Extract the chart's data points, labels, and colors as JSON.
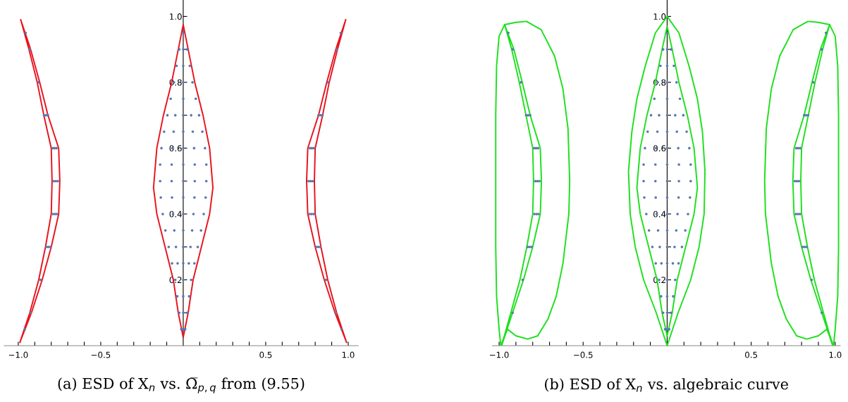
{
  "chart_data": [
    {
      "type": "scatter",
      "title": "(a) ESD of X$_{n}$ vs. Ω̅$_{p,q}$ from (9.55)",
      "marker": "none",
      "line_style": "solid",
      "xlim": [
        -1.085,
        1.06
      ],
      "ylim": [
        0,
        1.05
      ],
      "xticks": [
        {
          "value": -1.0,
          "label": "−1.0"
        },
        {
          "value": -0.9,
          "label": null
        },
        {
          "value": -0.8,
          "label": null
        },
        {
          "value": -0.7,
          "label": null
        },
        {
          "value": -0.6,
          "label": null
        },
        {
          "value": -0.5,
          "label": "−0.5"
        },
        {
          "value": -0.4,
          "label": null
        },
        {
          "value": -0.3,
          "label": null
        },
        {
          "value": -0.2,
          "label": null
        },
        {
          "value": -0.1,
          "label": null
        },
        {
          "value": 0.1,
          "label": null
        },
        {
          "value": 0.2,
          "label": null
        },
        {
          "value": 0.3,
          "label": null
        },
        {
          "value": 0.4,
          "label": null
        },
        {
          "value": 0.5,
          "label": "0.5"
        },
        {
          "value": 0.6,
          "label": null
        },
        {
          "value": 0.7,
          "label": null
        },
        {
          "value": 0.8,
          "label": null
        },
        {
          "value": 0.9,
          "label": null
        },
        {
          "value": 1.0,
          "label": "1.0"
        }
      ],
      "yticks": [
        {
          "value": 0.1,
          "label": null
        },
        {
          "value": 0.2,
          "label": "0.2"
        },
        {
          "value": 0.3,
          "label": null
        },
        {
          "value": 0.4,
          "label": "0.4"
        },
        {
          "value": 0.5,
          "label": null
        },
        {
          "value": 0.6,
          "label": "0.6"
        },
        {
          "value": 0.7,
          "label": null
        },
        {
          "value": 0.8,
          "label": "0.8"
        },
        {
          "value": 0.9,
          "label": null
        },
        {
          "value": 1.0,
          "label": "1.0"
        }
      ],
      "series": [
        {
          "type": "scatter",
          "marker": "circle",
          "color": "#5a78b0",
          "x": [
            -0.012,
            0,
            0.012,
            -0.024,
            0,
            0.024,
            -0.036,
            0,
            0.036,
            -0.048,
            0,
            0.048,
            -0.068,
            -0.034,
            0,
            0.034,
            0.068,
            -0.088,
            -0.044,
            0,
            0.044,
            0.088,
            -0.108,
            -0.054,
            0,
            0.054,
            0.108,
            -0.124,
            -0.062,
            0,
            0.062,
            0.124,
            -0.136,
            -0.068,
            0,
            0.068,
            0.136,
            -0.14,
            -0.07,
            0,
            0.07,
            0.14,
            -0.14,
            -0.07,
            0,
            0.07,
            0.14,
            -0.132,
            -0.066,
            0,
            0.066,
            0.132,
            -0.116,
            -0.058,
            0,
            0.058,
            0.116,
            -0.096,
            -0.048,
            0,
            0.048,
            0.096,
            -0.076,
            0,
            0.076,
            -0.056,
            0,
            0.056,
            -0.04,
            0,
            0.04,
            -0.024,
            0,
            0.024,
            0
          ],
          "values": [
            0.05,
            0.05,
            0.05,
            0.1,
            0.1,
            0.1,
            0.15,
            0.15,
            0.15,
            0.2,
            0.2,
            0.2,
            0.25,
            0.25,
            0.25,
            0.25,
            0.25,
            0.3,
            0.3,
            0.3,
            0.3,
            0.3,
            0.35,
            0.35,
            0.35,
            0.35,
            0.35,
            0.4,
            0.4,
            0.4,
            0.4,
            0.4,
            0.45,
            0.45,
            0.45,
            0.45,
            0.45,
            0.5,
            0.5,
            0.5,
            0.5,
            0.5,
            0.55,
            0.55,
            0.55,
            0.55,
            0.55,
            0.6,
            0.6,
            0.6,
            0.6,
            0.6,
            0.65,
            0.65,
            0.65,
            0.65,
            0.65,
            0.7,
            0.7,
            0.7,
            0.7,
            0.7,
            0.75,
            0.75,
            0.75,
            0.8,
            0.8,
            0.8,
            0.85,
            0.85,
            0.85,
            0.9,
            0.9,
            0.9,
            0.95
          ]
        },
        {
          "marker": "circle",
          "color": "#5a78b0",
          "x": [
            0.96,
            0.925,
            0.865,
            0.806,
            0.818,
            0.83,
            0.766,
            0.778,
            0.79,
            0.76,
            0.772,
            0.784,
            0.768,
            0.78,
            0.792,
            0.82,
            0.832,
            0.844,
            0.878,
            0.93,
            0.955
          ],
          "values": [
            0.05,
            0.1,
            0.2,
            0.3,
            0.3,
            0.3,
            0.4,
            0.4,
            0.4,
            0.5,
            0.5,
            0.5,
            0.6,
            0.6,
            0.6,
            0.7,
            0.7,
            0.7,
            0.8,
            0.9,
            0.95
          ]
        },
        {
          "marker": "circle",
          "color": "#5a78b0",
          "x": [
            -0.96,
            -0.925,
            -0.865,
            -0.806,
            -0.818,
            -0.83,
            -0.766,
            -0.778,
            -0.79,
            -0.76,
            -0.772,
            -0.784,
            -0.768,
            -0.78,
            -0.792,
            -0.82,
            -0.832,
            -0.844,
            -0.878,
            -0.93,
            -0.955
          ],
          "values": [
            0.05,
            0.1,
            0.2,
            0.3,
            0.3,
            0.3,
            0.4,
            0.4,
            0.4,
            0.5,
            0.5,
            0.5,
            0.6,
            0.6,
            0.6,
            0.7,
            0.7,
            0.7,
            0.8,
            0.9,
            0.95
          ]
        },
        {
          "type": "line",
          "color": "#e8141e",
          "x": [
            -0.18,
            -0.16,
            -0.12,
            -0.07,
            -0.03,
            0,
            0.03,
            0.07,
            0.12,
            0.16,
            0.18,
            null,
            -0.18,
            -0.16,
            -0.11,
            -0.06,
            -0.03,
            0,
            0.03,
            0.06,
            0.11,
            0.16,
            0.18
          ],
          "values": [
            0.48,
            0.6,
            0.7,
            0.8,
            0.9,
            0.975,
            0.9,
            0.8,
            0.7,
            0.6,
            0.48,
            null,
            0.48,
            0.4,
            0.3,
            0.2,
            0.1,
            0.025,
            0.1,
            0.2,
            0.3,
            0.4,
            0.48
          ]
        },
        {
          "type": "line",
          "color": "#e8141e",
          "x": [
            0.795,
            0.8,
            0.845,
            0.885,
            0.935,
            0.985,
            null,
            0.748,
            0.755,
            0.82,
            0.87,
            0.925,
            0.985,
            null,
            0.795,
            0.8,
            0.835,
            0.876,
            0.93,
            0.99,
            null,
            0.748,
            0.755,
            0.8,
            0.855,
            0.92,
            0.99
          ],
          "values": [
            0.5,
            0.6,
            0.7,
            0.8,
            0.9,
            0.99,
            null,
            0.5,
            0.6,
            0.7,
            0.8,
            0.9,
            0.99,
            null,
            0.5,
            0.4,
            0.3,
            0.2,
            0.1,
            0.01,
            null,
            0.5,
            0.4,
            0.3,
            0.2,
            0.1,
            0.01
          ]
        },
        {
          "type": "line",
          "color": "#e8141e",
          "x": [
            -0.795,
            -0.8,
            -0.845,
            -0.885,
            -0.935,
            -0.985,
            null,
            -0.748,
            -0.755,
            -0.82,
            -0.87,
            -0.925,
            -0.985,
            null,
            -0.795,
            -0.8,
            -0.835,
            -0.876,
            -0.93,
            -0.99,
            null,
            -0.748,
            -0.755,
            -0.8,
            -0.855,
            -0.92,
            -0.99
          ],
          "values": [
            0.5,
            0.6,
            0.7,
            0.8,
            0.9,
            0.99,
            null,
            0.5,
            0.6,
            0.7,
            0.8,
            0.9,
            0.99,
            null,
            0.5,
            0.4,
            0.3,
            0.2,
            0.1,
            0.01,
            null,
            0.5,
            0.4,
            0.3,
            0.2,
            0.1,
            0.01
          ]
        }
      ]
    },
    {
      "type": "scatter",
      "title": "(b) ESD of X$_{n}$ vs. algebraic curve",
      "marker": "none",
      "line_style": "solid",
      "xlim": [
        -1.04,
        1.03
      ],
      "ylim": [
        0,
        1.05
      ],
      "xticks": [
        {
          "value": -1.0,
          "label": "−1.0"
        },
        {
          "value": -0.9,
          "label": null
        },
        {
          "value": -0.8,
          "label": null
        },
        {
          "value": -0.7,
          "label": null
        },
        {
          "value": -0.6,
          "label": null
        },
        {
          "value": -0.5,
          "label": "−0.5"
        },
        {
          "value": -0.4,
          "label": null
        },
        {
          "value": -0.3,
          "label": null
        },
        {
          "value": -0.2,
          "label": null
        },
        {
          "value": -0.1,
          "label": null
        },
        {
          "value": 0.1,
          "label": null
        },
        {
          "value": 0.2,
          "label": null
        },
        {
          "value": 0.3,
          "label": null
        },
        {
          "value": 0.4,
          "label": null
        },
        {
          "value": 0.5,
          "label": "0.5"
        },
        {
          "value": 0.6,
          "label": null
        },
        {
          "value": 0.7,
          "label": null
        },
        {
          "value": 0.8,
          "label": null
        },
        {
          "value": 0.9,
          "label": null
        },
        {
          "value": 1.0,
          "label": "1.0"
        }
      ],
      "yticks": [
        {
          "value": 0.1,
          "label": null
        },
        {
          "value": 0.2,
          "label": "0.2"
        },
        {
          "value": 0.3,
          "label": null
        },
        {
          "value": 0.4,
          "label": "0.4"
        },
        {
          "value": 0.5,
          "label": null
        },
        {
          "value": 0.6,
          "label": "0.6"
        },
        {
          "value": 0.7,
          "label": null
        },
        {
          "value": 0.8,
          "label": "0.8"
        },
        {
          "value": 0.9,
          "label": null
        },
        {
          "value": 1.0,
          "label": "1.0"
        }
      ],
      "series": [
        {
          "type": "scatter",
          "marker": "circle",
          "color": "#5a78b0",
          "x": [
            -0.012,
            0,
            0.012,
            -0.024,
            0,
            0.024,
            -0.036,
            0,
            0.036,
            -0.048,
            0,
            0.048,
            -0.068,
            -0.034,
            0,
            0.034,
            0.068,
            -0.088,
            -0.044,
            0,
            0.044,
            0.088,
            -0.108,
            -0.054,
            0,
            0.054,
            0.108,
            -0.124,
            -0.062,
            0,
            0.062,
            0.124,
            -0.136,
            -0.068,
            0,
            0.068,
            0.136,
            -0.14,
            -0.07,
            0,
            0.07,
            0.14,
            -0.14,
            -0.07,
            0,
            0.07,
            0.14,
            -0.132,
            -0.066,
            0,
            0.066,
            0.132,
            -0.116,
            -0.058,
            0,
            0.058,
            0.116,
            -0.096,
            -0.048,
            0,
            0.048,
            0.096,
            -0.076,
            0,
            0.076,
            -0.056,
            0,
            0.056,
            -0.04,
            0,
            0.04,
            -0.024,
            0,
            0.024,
            0
          ],
          "values": [
            0.05,
            0.05,
            0.05,
            0.1,
            0.1,
            0.1,
            0.15,
            0.15,
            0.15,
            0.2,
            0.2,
            0.2,
            0.25,
            0.25,
            0.25,
            0.25,
            0.25,
            0.3,
            0.3,
            0.3,
            0.3,
            0.3,
            0.35,
            0.35,
            0.35,
            0.35,
            0.35,
            0.4,
            0.4,
            0.4,
            0.4,
            0.4,
            0.45,
            0.45,
            0.45,
            0.45,
            0.45,
            0.5,
            0.5,
            0.5,
            0.5,
            0.5,
            0.55,
            0.55,
            0.55,
            0.55,
            0.55,
            0.6,
            0.6,
            0.6,
            0.6,
            0.6,
            0.65,
            0.65,
            0.65,
            0.65,
            0.65,
            0.7,
            0.7,
            0.7,
            0.7,
            0.7,
            0.75,
            0.75,
            0.75,
            0.8,
            0.8,
            0.8,
            0.85,
            0.85,
            0.85,
            0.9,
            0.9,
            0.9,
            0.95
          ]
        },
        {
          "marker": "circle",
          "color": "#5a78b0",
          "x": [
            0.92,
            0.86,
            0.806,
            0.818,
            0.83,
            0.766,
            0.778,
            0.79,
            0.76,
            0.772,
            0.784,
            0.768,
            0.78,
            0.792,
            0.815,
            0.827,
            0.839,
            0.87,
            0.92,
            0.945
          ],
          "values": [
            0.1,
            0.2,
            0.3,
            0.3,
            0.3,
            0.4,
            0.4,
            0.4,
            0.5,
            0.5,
            0.5,
            0.6,
            0.6,
            0.6,
            0.7,
            0.7,
            0.7,
            0.8,
            0.9,
            0.95
          ]
        },
        {
          "marker": "circle",
          "color": "#5a78b0",
          "x": [
            -0.92,
            -0.86,
            -0.806,
            -0.818,
            -0.83,
            -0.766,
            -0.778,
            -0.79,
            -0.76,
            -0.772,
            -0.784,
            -0.768,
            -0.78,
            -0.792,
            -0.815,
            -0.827,
            -0.839,
            -0.87,
            -0.92,
            -0.945
          ],
          "values": [
            0.1,
            0.2,
            0.3,
            0.3,
            0.3,
            0.4,
            0.4,
            0.4,
            0.5,
            0.5,
            0.5,
            0.6,
            0.6,
            0.6,
            0.7,
            0.7,
            0.7,
            0.8,
            0.9,
            0.95
          ]
        },
        {
          "type": "line",
          "color": "#1ee01e",
          "x": [
            -0.18,
            -0.16,
            -0.12,
            -0.07,
            -0.03,
            0,
            0.03,
            0.07,
            0.12,
            0.16,
            0.18,
            null,
            -0.18,
            -0.16,
            -0.11,
            -0.06,
            -0.03,
            0,
            0.03,
            0.06,
            0.11,
            0.16,
            0.18
          ],
          "values": [
            0.48,
            0.6,
            0.7,
            0.8,
            0.9,
            0.97,
            0.9,
            0.8,
            0.7,
            0.6,
            0.48,
            null,
            0.48,
            0.4,
            0.3,
            0.2,
            0.1,
            0.03,
            0.1,
            0.2,
            0.3,
            0.4,
            0.48
          ]
        },
        {
          "type": "line",
          "color": "#1ee01e",
          "x": [
            -0.23,
            -0.21,
            -0.18,
            -0.13,
            -0.07,
            0,
            0.07,
            0.13,
            0.18,
            0.21,
            0.225,
            null,
            -0.23,
            -0.22,
            -0.19,
            -0.14,
            -0.065,
            0,
            0.065,
            0.14,
            0.19,
            0.22,
            0.225
          ],
          "values": [
            0.53,
            0.65,
            0.75,
            0.85,
            0.95,
            1.0,
            0.95,
            0.85,
            0.75,
            0.65,
            0.53,
            null,
            0.53,
            0.4,
            0.3,
            0.2,
            0.1,
            0,
            0.1,
            0.2,
            0.3,
            0.4,
            0.53
          ]
        },
        {
          "type": "line",
          "color": "#1ee01e",
          "x": [
            0.795,
            0.8,
            0.84,
            0.88,
            0.925,
            0.967,
            null,
            0.748,
            0.755,
            0.815,
            0.862,
            0.912,
            0.967,
            null,
            0.795,
            0.8,
            0.835,
            0.876,
            0.93,
            0.985,
            null,
            0.748,
            0.755,
            0.8,
            0.855,
            0.92,
            0.985
          ],
          "values": [
            0.5,
            0.6,
            0.7,
            0.8,
            0.9,
            0.975,
            null,
            0.5,
            0.6,
            0.7,
            0.8,
            0.9,
            0.975,
            null,
            0.5,
            0.4,
            0.3,
            0.2,
            0.1,
            0.0,
            null,
            0.5,
            0.4,
            0.3,
            0.2,
            0.1,
            0.0
          ]
        },
        {
          "type": "line",
          "color": "#1ee01e",
          "x": [
            -0.795,
            -0.8,
            -0.84,
            -0.88,
            -0.925,
            -0.967,
            null,
            -0.748,
            -0.755,
            -0.815,
            -0.862,
            -0.912,
            -0.967,
            null,
            -0.795,
            -0.8,
            -0.835,
            -0.876,
            -0.93,
            -0.985,
            null,
            -0.748,
            -0.755,
            -0.8,
            -0.855,
            -0.92,
            -0.985
          ],
          "values": [
            0.5,
            0.6,
            0.7,
            0.8,
            0.9,
            0.975,
            null,
            0.5,
            0.6,
            0.7,
            0.8,
            0.9,
            0.975,
            null,
            0.5,
            0.4,
            0.3,
            0.2,
            0.1,
            0.0,
            null,
            0.5,
            0.4,
            0.3,
            0.2,
            0.1,
            0.0
          ]
        },
        {
          "type": "line",
          "color": "#1ee01e",
          "x": [
            0.58,
            0.59,
            0.62,
            0.67,
            0.75,
            0.837,
            0.9,
            0.967,
            null,
            0.58,
            0.585,
            0.62,
            0.66,
            0.71,
            0.77,
            0.83,
            0.9,
            0.95,
            0.967,
            0.99,
            1.0,
            1.015,
            1.02,
            null,
            0.967,
            1.0,
            1.015,
            1.02,
            1.02
          ],
          "values": [
            0.5,
            0.66,
            0.78,
            0.88,
            0.96,
            0.985,
            0.982,
            0.975,
            null,
            0.5,
            0.4,
            0.25,
            0.15,
            0.08,
            0.03,
            0.02,
            0.03,
            0.05,
            0.03,
            0.0,
            0.05,
            0.15,
            0.3,
            null,
            0.975,
            0.94,
            0.85,
            0.7,
            0.3
          ]
        },
        {
          "type": "line",
          "color": "#1ee01e",
          "x": [
            -0.58,
            -0.59,
            -0.62,
            -0.67,
            -0.75,
            -0.837,
            -0.9,
            -0.967,
            null,
            -0.58,
            -0.585,
            -0.62,
            -0.66,
            -0.71,
            -0.77,
            -0.83,
            -0.9,
            -0.95,
            -0.967,
            -0.99,
            -1.0,
            -1.015,
            -1.02,
            null,
            -0.967,
            -1.0,
            -1.015,
            -1.02,
            -1.02
          ],
          "values": [
            0.5,
            0.66,
            0.78,
            0.88,
            0.96,
            0.985,
            0.982,
            0.975,
            null,
            0.5,
            0.4,
            0.25,
            0.15,
            0.08,
            0.03,
            0.02,
            0.03,
            0.05,
            0.03,
            0.0,
            0.05,
            0.15,
            0.3,
            null,
            0.975,
            0.94,
            0.85,
            0.7,
            0.3
          ]
        }
      ]
    }
  ]
}
